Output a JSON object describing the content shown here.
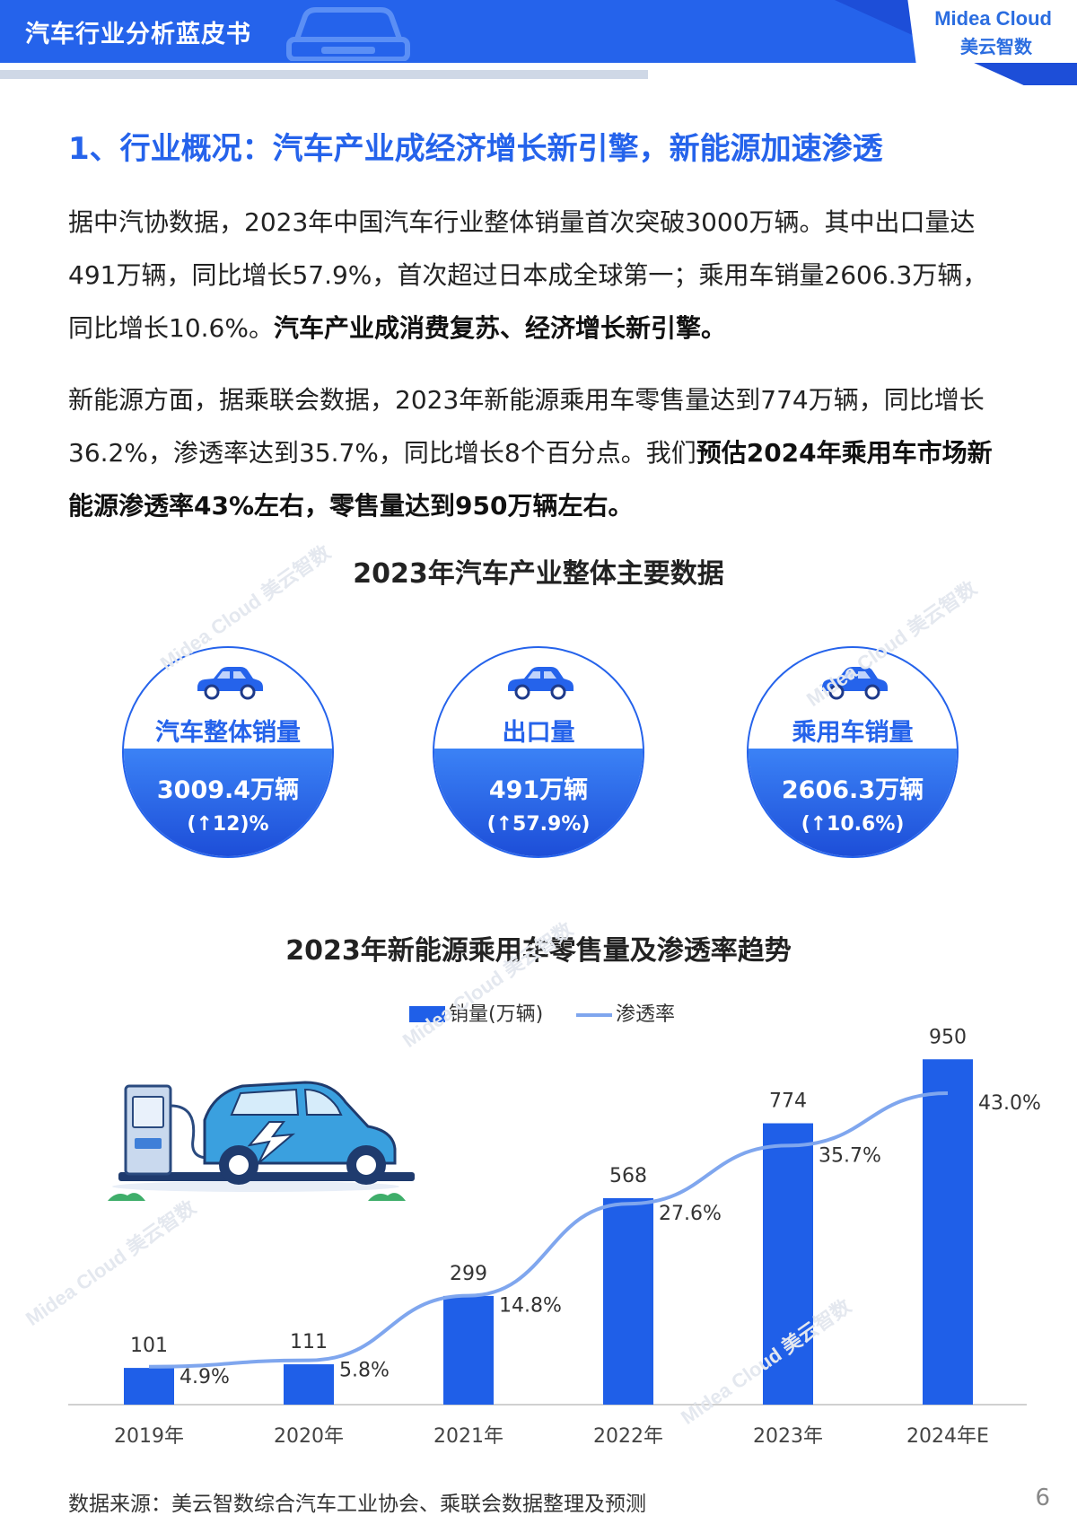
{
  "header": {
    "title": "汽车行业分析蓝皮书",
    "logo_en": "Midea Cloud",
    "logo_cn": "美云智数"
  },
  "section": {
    "title": "1、行业概况：汽车产业成经济增长新引擎，新能源加速渗透"
  },
  "paragraph1": {
    "text": "据中汽协数据，2023年中国汽车行业整体销量首次突破3000万辆。其中出口量达491万辆，同比增长57.9%，首次超过日本成全球第一；乘用车销量2606.3万辆，同比增长10.6%。",
    "bold": "汽车产业成消费复苏、经济增长新引擎。"
  },
  "paragraph2": {
    "text": "新能源方面，据乘联会数据，2023年新能源乘用车零售量达到774万辆，同比增长36.2%，渗透率达到35.7%，同比增长8个百分点。我们",
    "bold": "预估2024年乘用车市场新能源渗透率43%左右，零售量达到950万辆左右。"
  },
  "stats_section": {
    "title": "2023年汽车产业整体主要数据",
    "items": [
      {
        "label": "汽车整体销量",
        "value": "3009.4万辆",
        "change": "(↑12)%"
      },
      {
        "label": "出口量",
        "value": "491万辆",
        "change": "(↑57.9%)"
      },
      {
        "label": "乘用车销量",
        "value": "2606.3万辆",
        "change": "(↑10.6%)"
      }
    ]
  },
  "chart_data": {
    "type": "bar",
    "title": "2023年新能源乘用车零售量及渗透率趋势",
    "categories": [
      "2019年",
      "2020年",
      "2021年",
      "2022年",
      "2023年",
      "2024年E"
    ],
    "series": [
      {
        "name": "销量(万辆)",
        "type": "bar",
        "values": [
          101,
          111,
          299,
          568,
          774,
          950
        ],
        "color": "#1f5fe8"
      },
      {
        "name": "渗透率",
        "type": "line",
        "values": [
          4.9,
          5.8,
          14.8,
          27.6,
          35.7,
          43.0
        ],
        "labels": [
          "4.9%",
          "5.8%",
          "14.8%",
          "27.6%",
          "35.7%",
          "43.0%"
        ],
        "color": "#7fa6ee"
      }
    ],
    "ylim": [
      0,
      1000
    ],
    "y2lim": [
      0,
      50
    ],
    "legend": "top-center",
    "grid": false
  },
  "footer": {
    "source": "数据来源：美云智数综合汽车工业协会、乘联会数据整理及预测",
    "page": "6"
  },
  "watermark": "Midea Cloud 美云智数"
}
